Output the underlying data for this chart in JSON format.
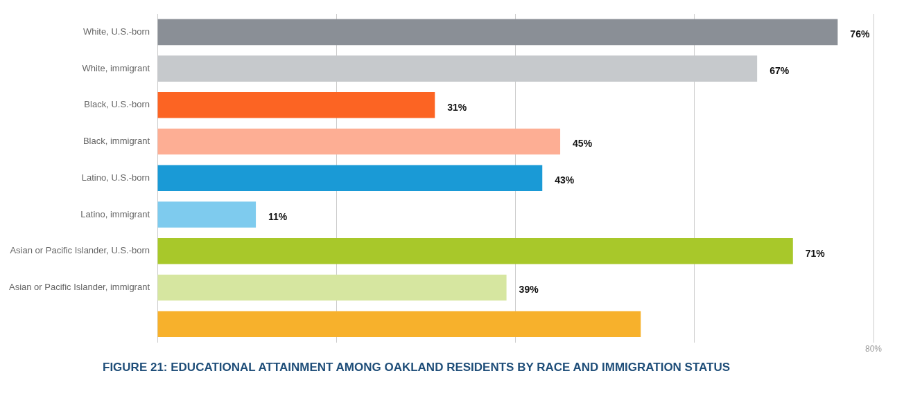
{
  "chart_data": {
    "type": "bar",
    "orientation": "horizontal",
    "title": "FIGURE 21: EDUCATIONAL ATTAINMENT AMONG OAKLAND RESIDENTS BY RACE AND IMMIGRATION STATUS",
    "categories": [
      "White, U.S.-born",
      "White, immigrant",
      "Black, U.S.-born",
      "Black, immigrant",
      "Latino, U.S.-born",
      "Latino, immigrant",
      "Asian or Pacific Islander, U.S.-born",
      "Asian or Pacific Islander, immigrant",
      null
    ],
    "values": [
      76,
      67,
      31,
      45,
      43,
      11,
      71,
      39,
      54
    ],
    "colors": [
      "#8a8f96",
      "#c6c9cc",
      "#fc6423",
      "#fdae94",
      "#1a9ad6",
      "#7ecbee",
      "#a8c82a",
      "#d6e6a0",
      "#f7b12c"
    ],
    "value_labels": [
      "76%",
      "67%",
      "31%",
      "45%",
      "43%",
      "11%",
      "71%",
      "39%",
      null
    ],
    "xlim": [
      0,
      80
    ],
    "xticks": [
      {
        "value": 0,
        "label": null
      },
      {
        "value": 20,
        "label": null
      },
      {
        "value": 40,
        "label": null
      },
      {
        "value": 60,
        "label": null
      },
      {
        "value": 80,
        "label": "80%"
      }
    ],
    "grid": "x",
    "legend": false
  }
}
